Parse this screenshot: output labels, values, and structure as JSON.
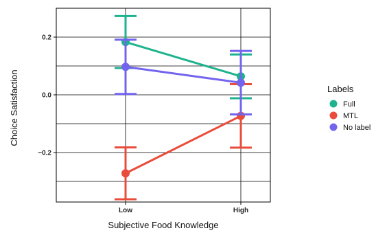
{
  "chart_data": {
    "type": "line",
    "xlabel": "Subjective Food Knowledge",
    "ylabel": "Choice Satisfaction",
    "categories": [
      "Low",
      "High"
    ],
    "y_ticks": [
      0.2,
      0.0,
      -0.2
    ],
    "y_tick_labels": [
      "0.2",
      "0.0",
      "−0.2"
    ],
    "ylim": [
      -0.4,
      0.3
    ],
    "grid": true,
    "legend": {
      "title": "Labels",
      "position": "right"
    },
    "series": [
      {
        "name": "Full",
        "color": "#1eb38e",
        "values": [
          0.183,
          0.064
        ],
        "ci_low": [
          0.093,
          -0.012
        ],
        "ci_high": [
          0.273,
          0.14
        ]
      },
      {
        "name": "MTL",
        "color": "#ea4c3c",
        "values": [
          -0.272,
          -0.073
        ],
        "ci_low": [
          -0.362,
          -0.183
        ],
        "ci_high": [
          -0.182,
          0.037
        ]
      },
      {
        "name": "No label",
        "color": "#7364ee",
        "values": [
          0.097,
          0.042
        ],
        "ci_low": [
          0.003,
          -0.068
        ],
        "ci_high": [
          0.191,
          0.152
        ]
      }
    ]
  }
}
